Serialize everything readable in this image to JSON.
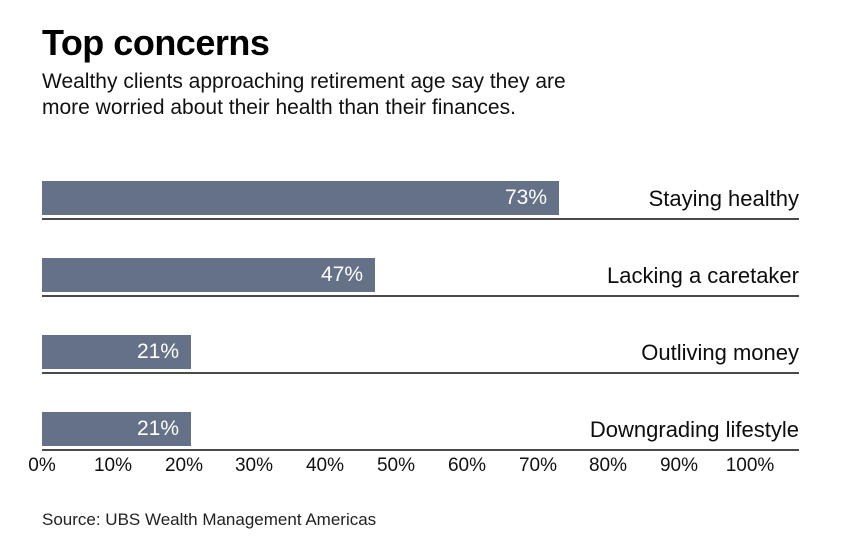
{
  "header": {
    "title": "Top concerns",
    "subtitle_line1": "Wealthy clients approaching retirement age say they are",
    "subtitle_line2": "more worried about their health than their finances."
  },
  "chart_data": {
    "type": "bar",
    "orientation": "horizontal",
    "title": "Top concerns",
    "subtitle": "Wealthy clients approaching retirement age say they are more worried about their health than their finances.",
    "categories": [
      "Staying healthy",
      "Lacking a caretaker",
      "Outliving money",
      "Downgrading lifestyle"
    ],
    "values": [
      73,
      47,
      21,
      21
    ],
    "value_labels": [
      "73%",
      "47%",
      "21%",
      "21%"
    ],
    "xlim": [
      0,
      100
    ],
    "x_ticks": [
      0,
      10,
      20,
      30,
      40,
      50,
      60,
      70,
      80,
      90,
      100
    ],
    "x_tick_labels": [
      "0%",
      "10%",
      "20%",
      "30%",
      "40%",
      "50%",
      "60%",
      "70%",
      "80%",
      "90%",
      "100%"
    ],
    "bar_color": "#647186",
    "value_label_color": "#ffffff",
    "baseline_color": "#4a4a4a",
    "grid": false,
    "legend": false
  },
  "footer": {
    "source": "Source: UBS Wealth Management Americas"
  }
}
